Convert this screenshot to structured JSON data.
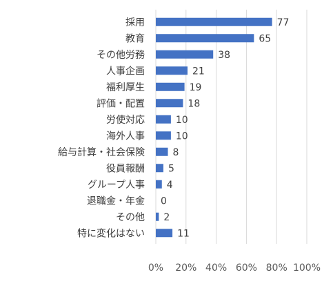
{
  "chart_data": {
    "type": "bar",
    "orientation": "horizontal",
    "categories": [
      "採用",
      "教育",
      "その他労務",
      "人事企画",
      "福利厚生",
      "評価・配置",
      "労使対応",
      "海外人事",
      "給与計算・社会保険",
      "役員報酬",
      "グループ人事",
      "退職金・年金",
      "その他",
      "特に変化はない"
    ],
    "values": [
      77,
      65,
      38,
      21,
      19,
      18,
      10,
      10,
      8,
      5,
      4,
      0,
      2,
      11
    ],
    "x_ticks": [
      "0%",
      "20%",
      "40%",
      "60%",
      "80%",
      "100%"
    ],
    "xlim": [
      0,
      100
    ],
    "grid": true,
    "legend": "none",
    "bar_color": "#4472C4",
    "grid_color": "#D9D9D9"
  }
}
